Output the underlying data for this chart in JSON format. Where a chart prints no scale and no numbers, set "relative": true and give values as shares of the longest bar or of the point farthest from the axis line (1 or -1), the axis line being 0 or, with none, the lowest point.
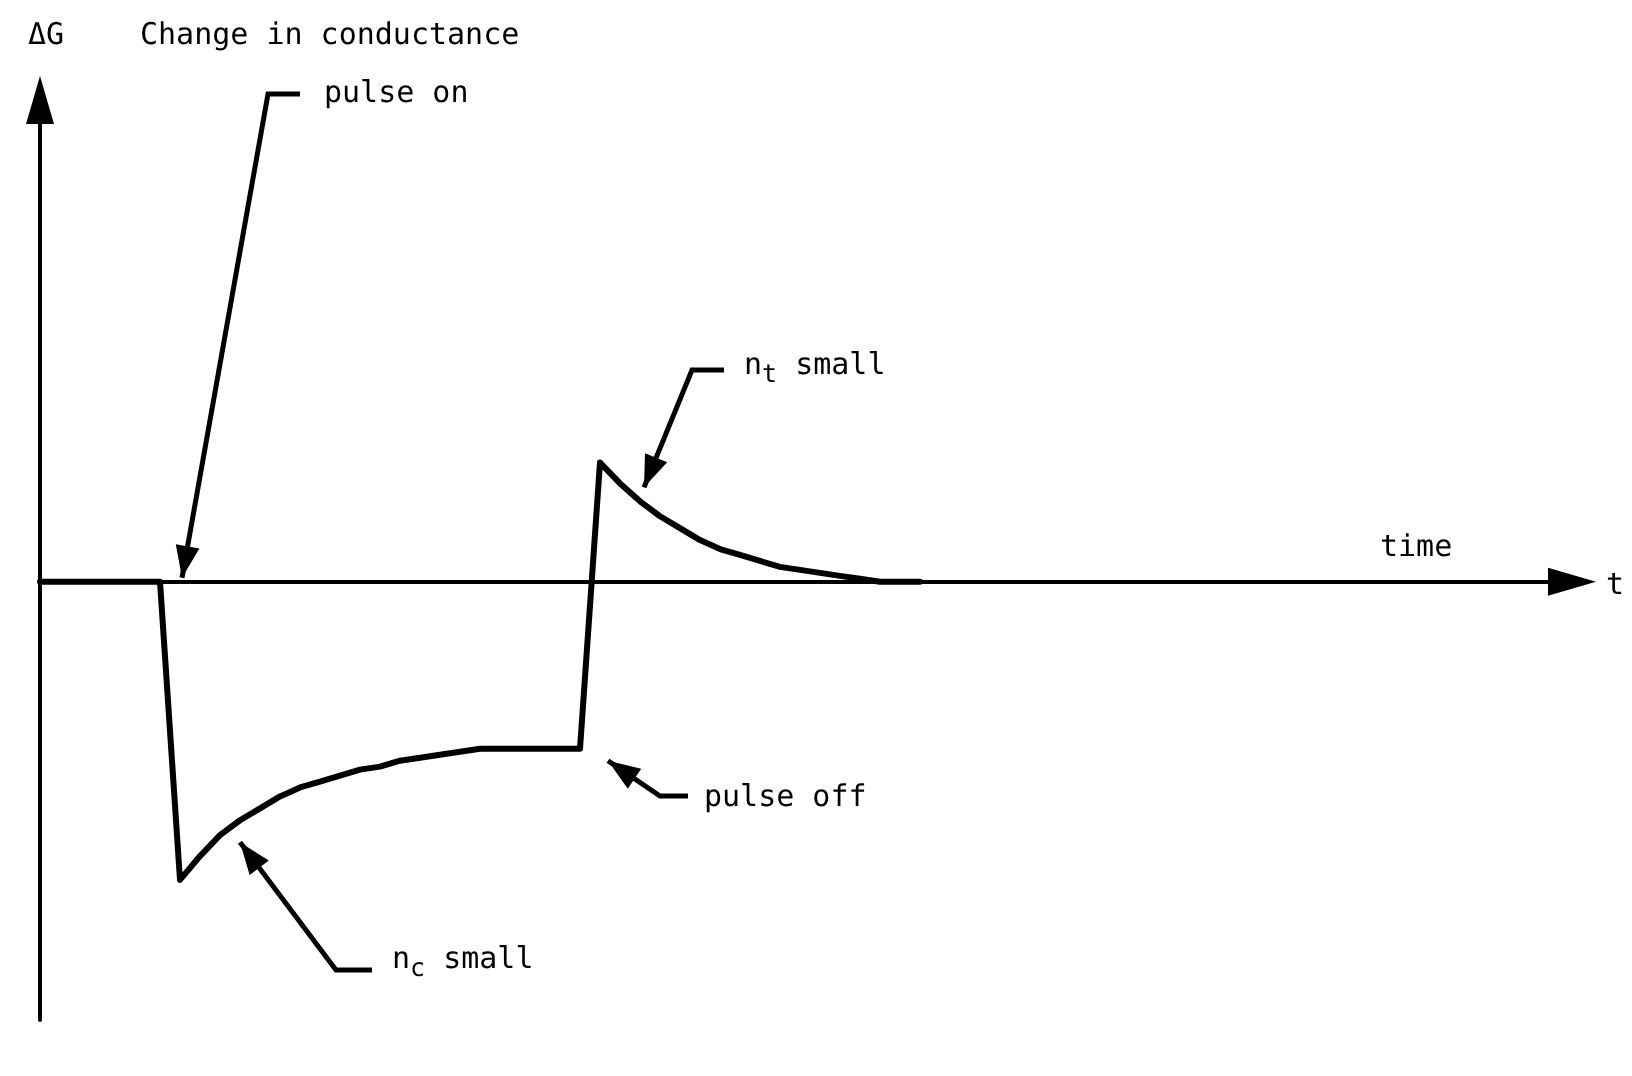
{
  "chart_data": {
    "type": "line",
    "title": "Change in conductance",
    "xlabel": "time",
    "relative": true,
    "grid": false,
    "marker": "none",
    "line_style": "solid",
    "categories": [
      null,
      null,
      null,
      null,
      null,
      null,
      null,
      null,
      null,
      null,
      null,
      null,
      null,
      null,
      null,
      null,
      null,
      null,
      null,
      null,
      null,
      null,
      null,
      null,
      null,
      null,
      null,
      null,
      null,
      null,
      null,
      null,
      null,
      null,
      null,
      null,
      null,
      null,
      null,
      null,
      null,
      null,
      null,
      null,
      null,
      null,
      null,
      null,
      null,
      null,
      null,
      null,
      null,
      null,
      null,
      null,
      null,
      null,
      null,
      null,
      null,
      null,
      null,
      null,
      null,
      null,
      null,
      null,
      null,
      null,
      null,
      null,
      null,
      null,
      null,
      null,
      null,
      null
    ],
    "series": [
      {
        "color": "#000000",
        "values": [
          0,
          0,
          0,
          0,
          0,
          0,
          0,
          -1,
          -0.92,
          -0.85,
          -0.8,
          -0.76,
          -0.72,
          -0.69,
          -0.67,
          -0.65,
          -0.63,
          -0.62,
          -0.6,
          -0.59,
          -0.58,
          -0.57,
          -0.56,
          -0.56,
          -0.56,
          -0.56,
          -0.56,
          -0.56,
          0.4,
          0.33,
          0.27,
          0.22,
          0.18,
          0.14,
          0.11,
          0.09,
          0.07,
          0.05,
          0.04,
          0.03,
          0.02,
          0.01,
          0,
          0,
          0,
          null,
          null,
          null,
          null,
          null,
          null,
          null,
          null,
          null,
          null,
          null,
          null,
          null,
          null,
          null,
          null,
          null,
          null,
          null,
          null,
          null,
          null,
          null,
          null,
          null,
          null,
          null,
          null,
          null,
          null,
          null,
          null,
          null
        ]
      }
    ],
    "annotations": [
      "pulse on",
      "pulse off",
      "n$_{c}$ small",
      "n$_{t}$ small",
      "t",
      "ΔG"
    ]
  }
}
